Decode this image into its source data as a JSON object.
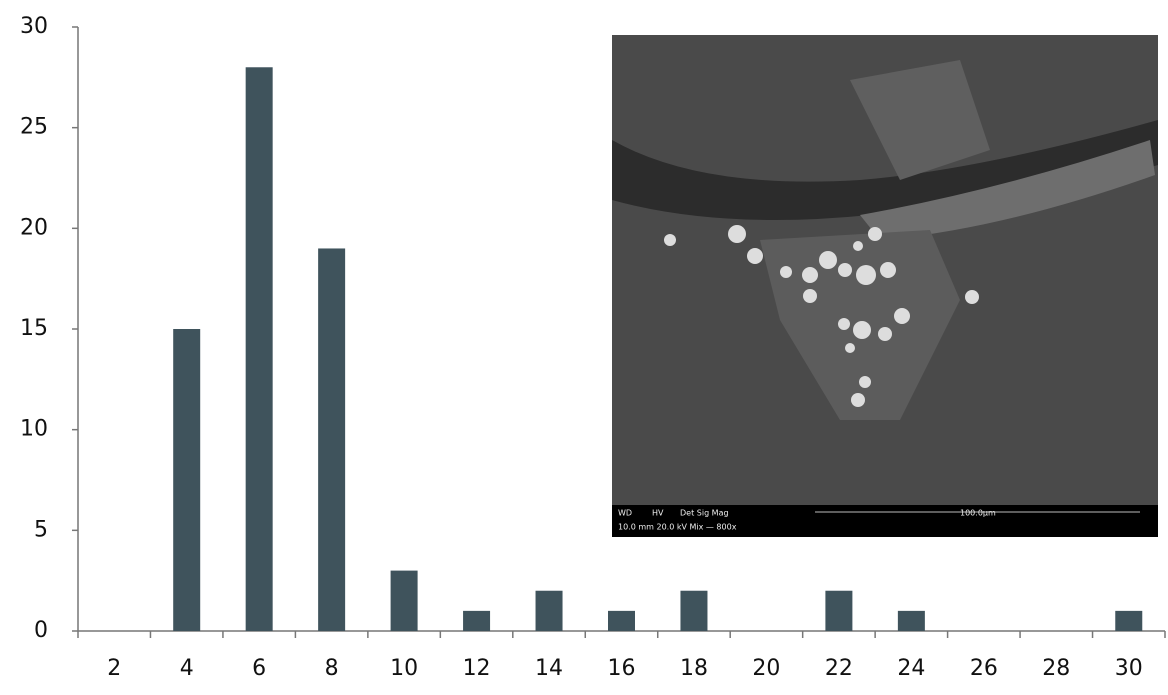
{
  "chart_data": {
    "type": "bar",
    "categories": [
      "2",
      "4",
      "6",
      "8",
      "10",
      "12",
      "14",
      "16",
      "18",
      "20",
      "22",
      "24",
      "26",
      "28",
      "30"
    ],
    "values": [
      0,
      15,
      28,
      19,
      3,
      1,
      2,
      1,
      2,
      0,
      2,
      1,
      0,
      0,
      1
    ],
    "color": "#3f535c",
    "ylim": [
      0,
      30
    ],
    "yticks": [
      0,
      5,
      10,
      15,
      20,
      25,
      30
    ],
    "grid": false,
    "annotations": [
      "WD",
      "HV",
      "Det Sig Mag",
      "10.0 mm 20.0 kV Mix — 800x",
      "100.0µm"
    ]
  }
}
